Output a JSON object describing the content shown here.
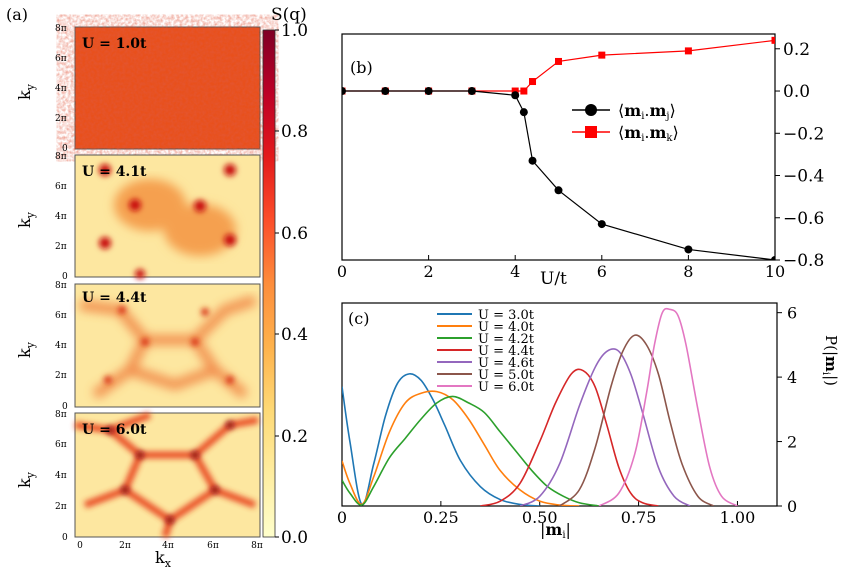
{
  "colors": {
    "colormap": [
      "#ffffcc",
      "#ffeda0",
      "#fed976",
      "#feb24c",
      "#fd8d3c",
      "#fc4e2a",
      "#e31a1c",
      "#bd0026",
      "#800026"
    ],
    "nn_series": "#000000",
    "nnn_series": "#ff0000",
    "dist_colors": [
      "#1f77b4",
      "#ff7f0e",
      "#2ca02c",
      "#d62728",
      "#9467bd",
      "#8c564b",
      "#e377c2"
    ]
  },
  "panel_a": {
    "label": "(a)",
    "colorbar_title": "S(q)",
    "colorbar_ticks": [
      "1.0",
      "0.8",
      "0.6",
      "0.4",
      "0.2",
      "0.0"
    ],
    "ylabel": "k_y",
    "xlabel": "k_x",
    "x_ticks": [
      "0",
      "2π",
      "4π",
      "6π",
      "8π"
    ],
    "y_ticks": [
      "8π",
      "6π",
      "4π",
      "2π",
      "0"
    ],
    "maps": [
      {
        "label": "U = 1.0t",
        "level": 0.8
      },
      {
        "label": "U = 4.1t",
        "level": 0.15
      },
      {
        "label": "U = 4.4t",
        "level": 0.12
      },
      {
        "label": "U = 6.0t",
        "level": 0.12
      }
    ]
  },
  "chart_data": [
    {
      "type": "line",
      "panel": "(b)",
      "xlabel": "U/t",
      "x_ticks": [
        "0",
        "2",
        "4",
        "6",
        "8",
        "10"
      ],
      "y_ticks": [
        "0.2",
        "0.0",
        "−0.2",
        "−0.4",
        "−0.6",
        "−0.8"
      ],
      "xlim": [
        0,
        10
      ],
      "ylim": [
        -0.8,
        0.27
      ],
      "legend_position": "right",
      "series": [
        {
          "name": "⟨m_i.m_j⟩",
          "marker": "circle",
          "x": [
            0,
            1,
            2,
            3,
            4,
            4.2,
            4.4,
            5,
            6,
            8,
            10
          ],
          "y": [
            0.0,
            0.0,
            0.0,
            0.0,
            -0.02,
            -0.1,
            -0.33,
            -0.47,
            -0.63,
            -0.75,
            -0.8
          ]
        },
        {
          "name": "⟨m_i.m_k⟩",
          "marker": "square",
          "x": [
            0,
            1,
            2,
            3,
            4,
            4.2,
            4.4,
            5,
            6,
            8,
            10
          ],
          "y": [
            0.0,
            0.0,
            0.0,
            0.0,
            0.0,
            0.0,
            0.045,
            0.14,
            0.17,
            0.19,
            0.24
          ]
        }
      ]
    },
    {
      "type": "line",
      "panel": "(c)",
      "xlabel": "|m_i|",
      "ylabel": "P(|m_i|)",
      "x_ticks": [
        "0",
        "0.25",
        "0.50",
        "0.75",
        "1.00"
      ],
      "y_ticks": [
        "6",
        "4",
        "2",
        "0"
      ],
      "xlim": [
        0,
        1.1
      ],
      "ylim": [
        0,
        6.3
      ],
      "legend_position": "top",
      "series": [
        {
          "name": "U = 3.0t",
          "x": [
            0.0,
            0.02,
            0.05,
            0.08,
            0.11,
            0.14,
            0.17,
            0.2,
            0.23,
            0.26,
            0.3,
            0.35,
            0.4,
            0.45,
            0.5
          ],
          "y": [
            3.7,
            2.0,
            0.05,
            1.3,
            2.8,
            3.8,
            4.1,
            3.9,
            3.3,
            2.5,
            1.4,
            0.6,
            0.2,
            0.05,
            0.0
          ]
        },
        {
          "name": "U = 4.0t",
          "x": [
            0.0,
            0.02,
            0.05,
            0.08,
            0.12,
            0.16,
            0.2,
            0.24,
            0.28,
            0.32,
            0.36,
            0.4,
            0.45,
            0.5,
            0.55,
            0.6
          ],
          "y": [
            1.4,
            0.7,
            0.05,
            0.9,
            2.3,
            3.2,
            3.5,
            3.55,
            3.3,
            2.7,
            1.9,
            1.1,
            0.5,
            0.15,
            0.03,
            0.0
          ]
        },
        {
          "name": "U = 4.2t",
          "x": [
            0.0,
            0.02,
            0.05,
            0.08,
            0.12,
            0.16,
            0.2,
            0.24,
            0.28,
            0.32,
            0.36,
            0.4,
            0.44,
            0.48,
            0.52,
            0.56,
            0.6,
            0.65
          ],
          "y": [
            0.8,
            0.4,
            0.03,
            0.6,
            1.5,
            2.1,
            2.7,
            3.2,
            3.4,
            3.2,
            2.9,
            2.3,
            1.7,
            1.1,
            0.6,
            0.3,
            0.1,
            0.0
          ]
        },
        {
          "name": "U = 4.4t",
          "x": [
            0.35,
            0.4,
            0.45,
            0.5,
            0.54,
            0.58,
            0.61,
            0.64,
            0.67,
            0.7,
            0.73,
            0.76,
            0.8
          ],
          "y": [
            0.0,
            0.15,
            0.7,
            2.0,
            3.2,
            4.1,
            4.2,
            3.7,
            2.5,
            1.2,
            0.4,
            0.1,
            0.0
          ]
        },
        {
          "name": "U = 4.6t",
          "x": [
            0.45,
            0.5,
            0.55,
            0.6,
            0.64,
            0.67,
            0.7,
            0.73,
            0.76,
            0.8,
            0.84,
            0.88
          ],
          "y": [
            0.0,
            0.3,
            1.3,
            3.1,
            4.3,
            4.8,
            4.8,
            4.1,
            2.9,
            1.2,
            0.3,
            0.0
          ]
        },
        {
          "name": "U = 5.0t",
          "x": [
            0.55,
            0.6,
            0.64,
            0.68,
            0.71,
            0.74,
            0.77,
            0.8,
            0.83,
            0.86,
            0.9,
            0.94
          ],
          "y": [
            0.0,
            0.5,
            1.8,
            3.7,
            4.8,
            5.3,
            5.0,
            4.1,
            2.6,
            1.3,
            0.3,
            0.0
          ]
        },
        {
          "name": "U = 6.0t",
          "x": [
            0.65,
            0.7,
            0.74,
            0.77,
            0.79,
            0.81,
            0.83,
            0.85,
            0.87,
            0.9,
            0.93,
            0.96,
            1.0
          ],
          "y": [
            0.0,
            0.4,
            1.6,
            3.5,
            5.0,
            6.0,
            6.1,
            5.9,
            5.0,
            3.0,
            1.2,
            0.3,
            0.0
          ]
        }
      ]
    }
  ]
}
